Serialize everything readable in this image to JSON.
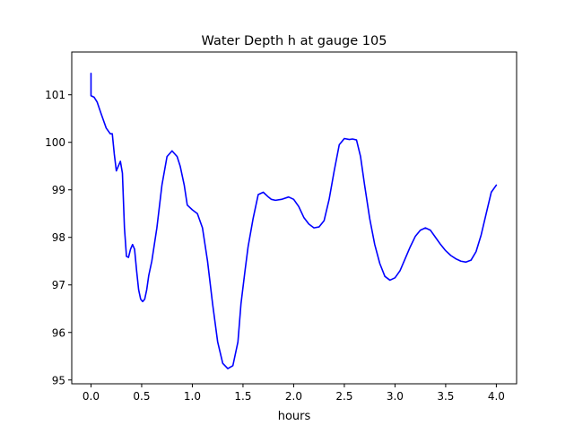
{
  "chart_data": {
    "type": "line",
    "title": "Water Depth h at gauge 105",
    "xlabel": "hours",
    "ylabel": "",
    "xlim": [
      -0.19,
      4.2
    ],
    "ylim": [
      94.92,
      101.9
    ],
    "xticks": [
      {
        "value": 0.0,
        "label": "0.0"
      },
      {
        "value": 0.5,
        "label": "0.5"
      },
      {
        "value": 1.0,
        "label": "1.0"
      },
      {
        "value": 1.5,
        "label": "1.5"
      },
      {
        "value": 2.0,
        "label": "2.0"
      },
      {
        "value": 2.5,
        "label": "2.5"
      },
      {
        "value": 3.0,
        "label": "3.0"
      },
      {
        "value": 3.5,
        "label": "3.5"
      },
      {
        "value": 4.0,
        "label": "4.0"
      }
    ],
    "yticks": [
      {
        "value": 95,
        "label": "95"
      },
      {
        "value": 96,
        "label": "96"
      },
      {
        "value": 97,
        "label": "97"
      },
      {
        "value": 98,
        "label": "98"
      },
      {
        "value": 99,
        "label": "99"
      },
      {
        "value": 100,
        "label": "100"
      },
      {
        "value": 101,
        "label": "101"
      }
    ],
    "grid": false,
    "legend": "none",
    "series": [
      {
        "color": "#0000ff",
        "x": [
          0.0,
          0.0,
          0.0,
          0.03,
          0.06,
          0.1,
          0.15,
          0.19,
          0.21,
          0.23,
          0.25,
          0.27,
          0.29,
          0.31,
          0.33,
          0.35,
          0.37,
          0.39,
          0.41,
          0.43,
          0.45,
          0.47,
          0.49,
          0.51,
          0.53,
          0.55,
          0.57,
          0.6,
          0.65,
          0.7,
          0.75,
          0.8,
          0.85,
          0.88,
          0.92,
          0.95,
          1.0,
          1.05,
          1.1,
          1.15,
          1.2,
          1.25,
          1.3,
          1.35,
          1.4,
          1.45,
          1.48,
          1.52,
          1.55,
          1.6,
          1.65,
          1.7,
          1.75,
          1.78,
          1.82,
          1.88,
          1.95,
          2.0,
          2.05,
          2.1,
          2.15,
          2.2,
          2.25,
          2.3,
          2.35,
          2.4,
          2.45,
          2.5,
          2.55,
          2.58,
          2.62,
          2.66,
          2.7,
          2.75,
          2.8,
          2.85,
          2.9,
          2.95,
          3.0,
          3.05,
          3.1,
          3.15,
          3.2,
          3.25,
          3.3,
          3.35,
          3.4,
          3.45,
          3.5,
          3.55,
          3.6,
          3.65,
          3.7,
          3.75,
          3.8,
          3.85,
          3.9,
          3.95,
          4.0
        ],
        "y": [
          101.45,
          101.0,
          100.98,
          100.95,
          100.85,
          100.6,
          100.3,
          100.18,
          100.18,
          99.75,
          99.4,
          99.5,
          99.6,
          99.35,
          98.2,
          97.6,
          97.58,
          97.75,
          97.85,
          97.75,
          97.3,
          96.9,
          96.7,
          96.65,
          96.7,
          96.9,
          97.2,
          97.5,
          98.2,
          99.1,
          99.7,
          99.82,
          99.7,
          99.5,
          99.1,
          98.68,
          98.58,
          98.5,
          98.2,
          97.5,
          96.6,
          95.8,
          95.35,
          95.24,
          95.3,
          95.8,
          96.6,
          97.3,
          97.8,
          98.4,
          98.9,
          98.95,
          98.85,
          98.8,
          98.78,
          98.8,
          98.85,
          98.8,
          98.65,
          98.42,
          98.28,
          98.2,
          98.22,
          98.35,
          98.8,
          99.4,
          99.95,
          100.08,
          100.06,
          100.07,
          100.05,
          99.7,
          99.1,
          98.4,
          97.85,
          97.45,
          97.18,
          97.1,
          97.15,
          97.3,
          97.55,
          97.8,
          98.02,
          98.15,
          98.2,
          98.15,
          98.0,
          97.85,
          97.72,
          97.62,
          97.55,
          97.5,
          97.48,
          97.52,
          97.7,
          98.05,
          98.5,
          98.95,
          99.1
        ]
      }
    ]
  }
}
